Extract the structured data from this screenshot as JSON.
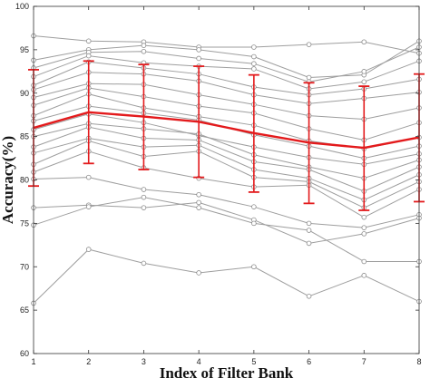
{
  "chart_data": {
    "type": "line",
    "title": "",
    "xlabel": "Index of Filter Bank",
    "ylabel": "Accuracy(%)",
    "x": [
      1,
      2,
      3,
      4,
      5,
      6,
      7,
      8
    ],
    "xlim": [
      1,
      8
    ],
    "ylim": [
      60,
      100
    ],
    "xticks": [
      1,
      2,
      3,
      4,
      5,
      6,
      7,
      8
    ],
    "yticks": [
      60,
      65,
      70,
      75,
      80,
      85,
      90,
      95,
      100
    ],
    "grid": false,
    "legend": "none",
    "subject_color": "#9e9e9e",
    "mean_color": "#e31a1c",
    "subjects": [
      [
        96.6,
        96.0,
        95.9,
        95.3,
        95.3,
        95.6,
        95.9,
        94.6
      ],
      [
        93.8,
        95.0,
        95.5,
        95.0,
        94.2,
        91.8,
        92.1,
        96.0
      ],
      [
        92.9,
        94.7,
        94.8,
        94.0,
        93.4,
        91.3,
        92.5,
        95.3
      ],
      [
        91.9,
        94.3,
        93.5,
        93.1,
        92.8,
        90.5,
        91.3,
        93.7
      ],
      [
        90.9,
        93.6,
        92.9,
        92.2,
        90.7,
        89.8,
        90.5,
        91.6
      ],
      [
        90.4,
        92.4,
        92.2,
        91.4,
        89.8,
        88.8,
        89.4,
        90.1
      ],
      [
        89.5,
        91.1,
        91.0,
        89.8,
        88.7,
        87.4,
        87.0,
        88.3
      ],
      [
        88.6,
        90.6,
        89.6,
        88.5,
        87.7,
        85.9,
        84.6,
        86.6
      ],
      [
        87.4,
        89.9,
        88.3,
        87.3,
        86.3,
        84.5,
        83.6,
        84.9
      ],
      [
        86.8,
        88.5,
        87.7,
        86.9,
        85.2,
        83.9,
        82.5,
        83.9
      ],
      [
        85.8,
        87.6,
        86.6,
        85.1,
        83.8,
        82.6,
        81.8,
        83.0
      ],
      [
        85.0,
        86.5,
        85.9,
        85.3,
        82.9,
        81.5,
        80.2,
        82.3
      ],
      [
        83.8,
        86.1,
        84.8,
        84.6,
        82.1,
        81.2,
        78.7,
        81.5
      ],
      [
        83.1,
        84.8,
        83.8,
        84.0,
        81.2,
        80.2,
        77.7,
        80.6
      ],
      [
        81.8,
        84.5,
        82.7,
        83.3,
        80.3,
        79.8,
        76.8,
        79.8
      ],
      [
        80.9,
        83.3,
        81.4,
        80.2,
        79.2,
        79.4,
        75.7,
        78.9
      ],
      [
        80.1,
        80.3,
        78.9,
        78.3,
        76.9,
        75.0,
        74.5,
        76.0
      ],
      [
        76.8,
        77.1,
        76.8,
        77.4,
        75.4,
        72.7,
        73.8,
        75.6
      ],
      [
        74.8,
        76.9,
        78.0,
        76.8,
        75.0,
        74.2,
        70.6,
        70.6
      ],
      [
        65.8,
        72.0,
        70.4,
        69.3,
        70.0,
        66.6,
        69.0,
        66.0
      ]
    ],
    "mean": {
      "values": [
        86.0,
        87.8,
        87.3,
        86.7,
        85.4,
        84.3,
        83.7,
        84.9
      ],
      "error_upper": [
        92.7,
        93.7,
        93.3,
        93.1,
        92.1,
        91.2,
        90.8,
        92.2
      ],
      "error_lower": [
        79.3,
        81.9,
        81.2,
        80.3,
        78.6,
        77.3,
        76.5,
        77.5
      ]
    }
  }
}
